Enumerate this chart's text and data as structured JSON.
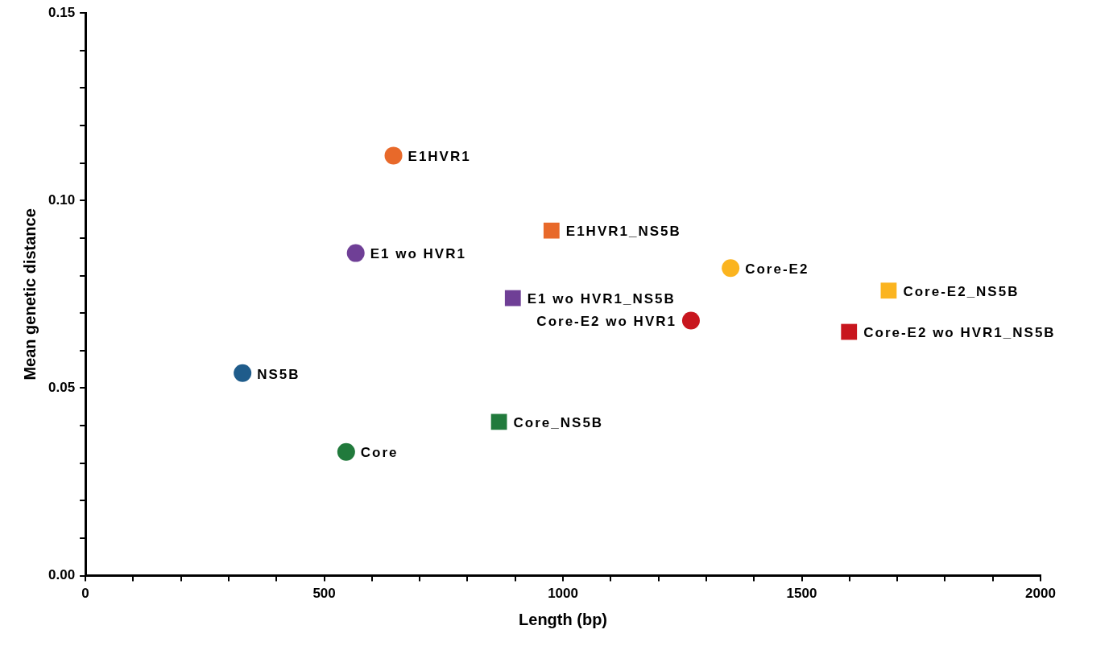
{
  "chart_data": {
    "type": "scatter",
    "xlabel": "Length (bp)",
    "ylabel": "Mean genetic distance",
    "xlim": [
      0,
      2000
    ],
    "ylim": [
      0,
      0.15
    ],
    "xticks": [
      0,
      {
        "value": 100,
        "label": null
      },
      {
        "value": 200,
        "label": null
      },
      {
        "value": 300,
        "label": null
      },
      {
        "value": 400,
        "label": null
      },
      500,
      {
        "value": 600,
        "label": null
      },
      {
        "value": 700,
        "label": null
      },
      {
        "value": 800,
        "label": null
      },
      {
        "value": 900,
        "label": null
      },
      1000,
      {
        "value": 1100,
        "label": null
      },
      {
        "value": 1200,
        "label": null
      },
      {
        "value": 1300,
        "label": null
      },
      {
        "value": 1400,
        "label": null
      },
      1500,
      {
        "value": 1600,
        "label": null
      },
      {
        "value": 1700,
        "label": null
      },
      {
        "value": 1800,
        "label": null
      },
      {
        "value": 1900,
        "label": null
      },
      2000
    ],
    "yticks": [
      {
        "value": 0,
        "label": "0.00"
      },
      {
        "value": 0.01,
        "label": null
      },
      {
        "value": 0.02,
        "label": null
      },
      {
        "value": 0.03,
        "label": null
      },
      {
        "value": 0.04,
        "label": null
      },
      {
        "value": 0.05,
        "label": "0.05"
      },
      {
        "value": 0.06,
        "label": null
      },
      {
        "value": 0.07,
        "label": null
      },
      {
        "value": 0.08,
        "label": null
      },
      {
        "value": 0.09,
        "label": null
      },
      {
        "value": 0.1,
        "label": "0.10"
      },
      {
        "value": 0.11,
        "label": null
      },
      {
        "value": 0.12,
        "label": null
      },
      {
        "value": 0.13,
        "label": null
      },
      {
        "value": 0.14,
        "label": null
      },
      {
        "value": 0.15,
        "label": "0.15"
      }
    ],
    "grid": false,
    "legend": false,
    "series": [
      {
        "name": "E1HVR1",
        "color": "#e8692a",
        "marker": "circle",
        "x": [
          645
        ],
        "values": [
          0.112
        ]
      },
      {
        "name": "E1 wo HVR1",
        "color": "#6f3f96",
        "marker": "circle",
        "x": [
          566
        ],
        "values": [
          0.086
        ]
      },
      {
        "name": "NS5B",
        "color": "#1f5c8b",
        "marker": "circle",
        "x": [
          329
        ],
        "values": [
          0.054
        ]
      },
      {
        "name": "Core",
        "color": "#217a3c",
        "marker": "circle",
        "x": [
          546
        ],
        "values": [
          0.033
        ]
      },
      {
        "name": "Core_NS5B",
        "color": "#217a3c",
        "marker": "square",
        "x": [
          866
        ],
        "values": [
          0.041
        ]
      },
      {
        "name": "E1 wo HVR1_NS5B",
        "color": "#6f3f96",
        "marker": "square",
        "x": [
          895
        ],
        "values": [
          0.074
        ]
      },
      {
        "name": "E1HVR1_NS5B",
        "color": "#e8692a",
        "marker": "square",
        "x": [
          976
        ],
        "values": [
          0.092
        ]
      },
      {
        "name": "Core-E2",
        "color": "#fbb41f",
        "marker": "circle",
        "x": [
          1351
        ],
        "values": [
          0.082
        ]
      },
      {
        "name": "Core-E2 wo HVR1",
        "color": "#c8161e",
        "marker": "circle",
        "x": [
          1268
        ],
        "values": [
          0.068
        ]
      },
      {
        "name": "Core-E2_NS5B",
        "color": "#fbb41f",
        "marker": "square",
        "x": [
          1682
        ],
        "values": [
          0.076
        ]
      },
      {
        "name": "Core-E2 wo HVR1_NS5B",
        "color": "#c8161e",
        "marker": "square",
        "x": [
          1599
        ],
        "values": [
          0.065
        ]
      }
    ]
  }
}
